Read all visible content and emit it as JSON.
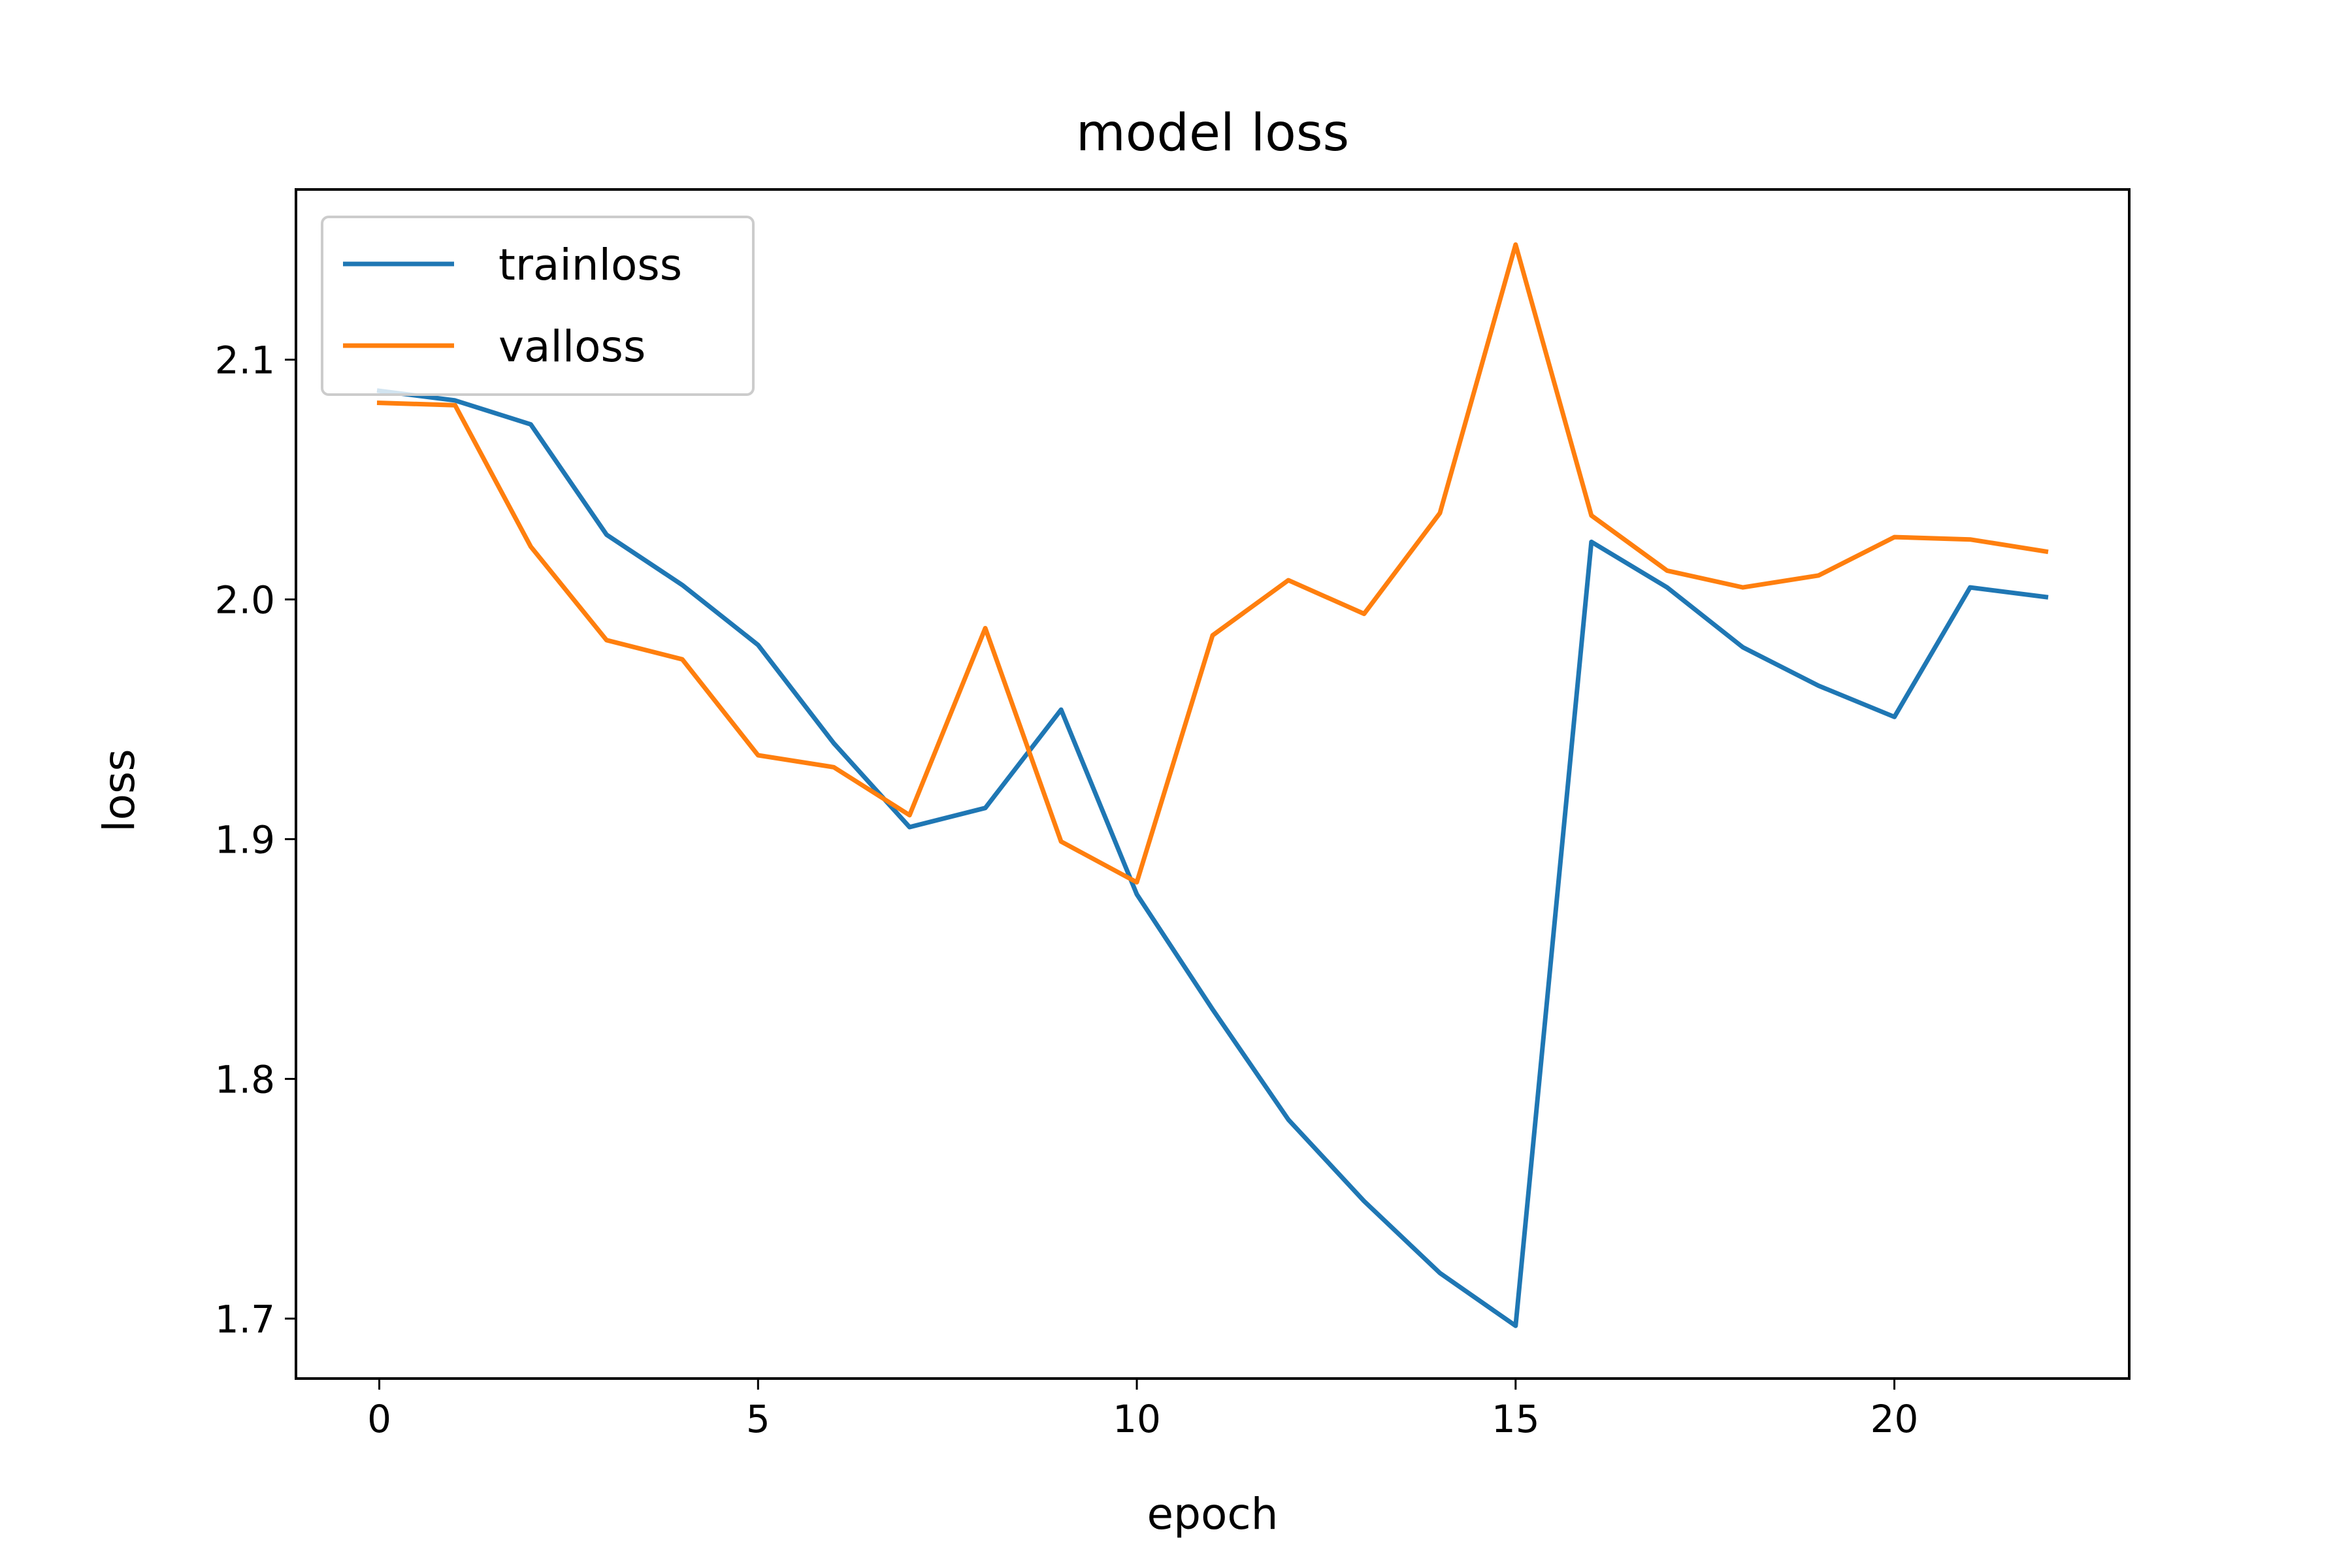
{
  "chart_data": {
    "type": "line",
    "title": "model loss",
    "xlabel": "epoch",
    "ylabel": "loss",
    "xlim": [
      -1.1,
      23.1
    ],
    "ylim": [
      1.675,
      2.171
    ],
    "xticks": [
      0,
      5,
      10,
      15,
      20
    ],
    "yticks": [
      1.7,
      1.8,
      1.9,
      2.0,
      2.1
    ],
    "ytick_labels": [
      "1.7",
      "1.8",
      "1.9",
      "2.0",
      "2.1"
    ],
    "grid": false,
    "legend_position": "upper-left",
    "x": [
      0,
      1,
      2,
      3,
      4,
      5,
      6,
      7,
      8,
      9,
      10,
      11,
      12,
      13,
      14,
      15,
      16,
      17,
      18,
      19,
      20,
      21,
      22
    ],
    "series": [
      {
        "name": "trainloss",
        "color": "#1f77b4",
        "values": [
          2.087,
          2.083,
          2.073,
          2.027,
          2.006,
          1.981,
          1.94,
          1.905,
          1.913,
          1.954,
          1.877,
          1.829,
          1.783,
          1.749,
          1.719,
          1.697,
          2.024,
          2.005,
          1.98,
          1.964,
          1.951,
          2.005,
          2.001
        ]
      },
      {
        "name": "valloss",
        "color": "#ff7f0e",
        "values": [
          2.082,
          2.081,
          2.022,
          1.983,
          1.975,
          1.935,
          1.93,
          1.91,
          1.988,
          1.899,
          1.882,
          1.985,
          2.008,
          1.994,
          2.036,
          2.148,
          2.035,
          2.012,
          2.005,
          2.01,
          2.026,
          2.025,
          2.02
        ]
      }
    ]
  }
}
